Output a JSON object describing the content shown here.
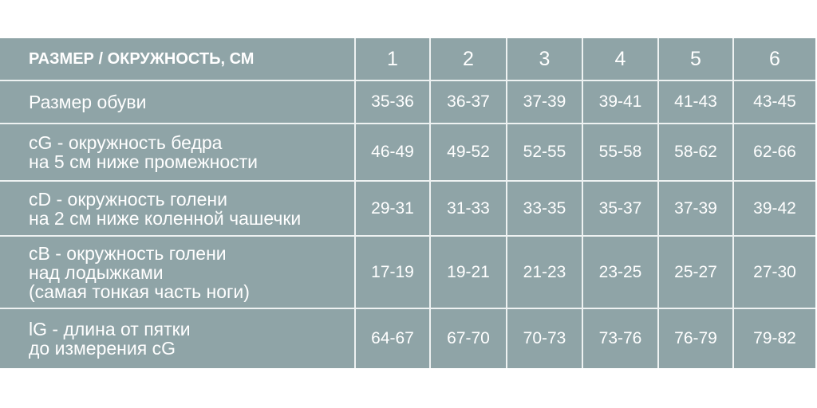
{
  "header": {
    "label": "РАЗМЕР / ОКРУЖНОСТЬ, СМ",
    "sizes": [
      "1",
      "2",
      "3",
      "4",
      "5",
      "6"
    ]
  },
  "rows": [
    {
      "label": "Размер обуви",
      "values": [
        "35-36",
        "36-37",
        "37-39",
        "39-41",
        "41-43",
        "43-45"
      ]
    },
    {
      "label": "cG - окружность бедра\nна 5 см ниже промежности",
      "values": [
        "46-49",
        "49-52",
        "52-55",
        "55-58",
        "58-62",
        "62-66"
      ]
    },
    {
      "label": "cD - окружность  голени\nна 2 см ниже коленной чашечки",
      "values": [
        "29-31",
        "31-33",
        "33-35",
        "35-37",
        "37-39",
        "39-42"
      ]
    },
    {
      "label": "cB - окружность  голени\nнад лодыжками\n(самая тонкая часть ноги)",
      "values": [
        "17-19",
        "19-21",
        "21-23",
        "23-25",
        "25-27",
        "27-30"
      ]
    },
    {
      "label": "lG - длина от пятки\nдо измерения cG",
      "values": [
        "64-67",
        "67-70",
        "70-73",
        "73-76",
        "76-79",
        "79-82"
      ]
    }
  ],
  "colors": {
    "cell_bg": "#8fa4a7",
    "grid": "#eef2f2",
    "text": "#ffffff"
  }
}
